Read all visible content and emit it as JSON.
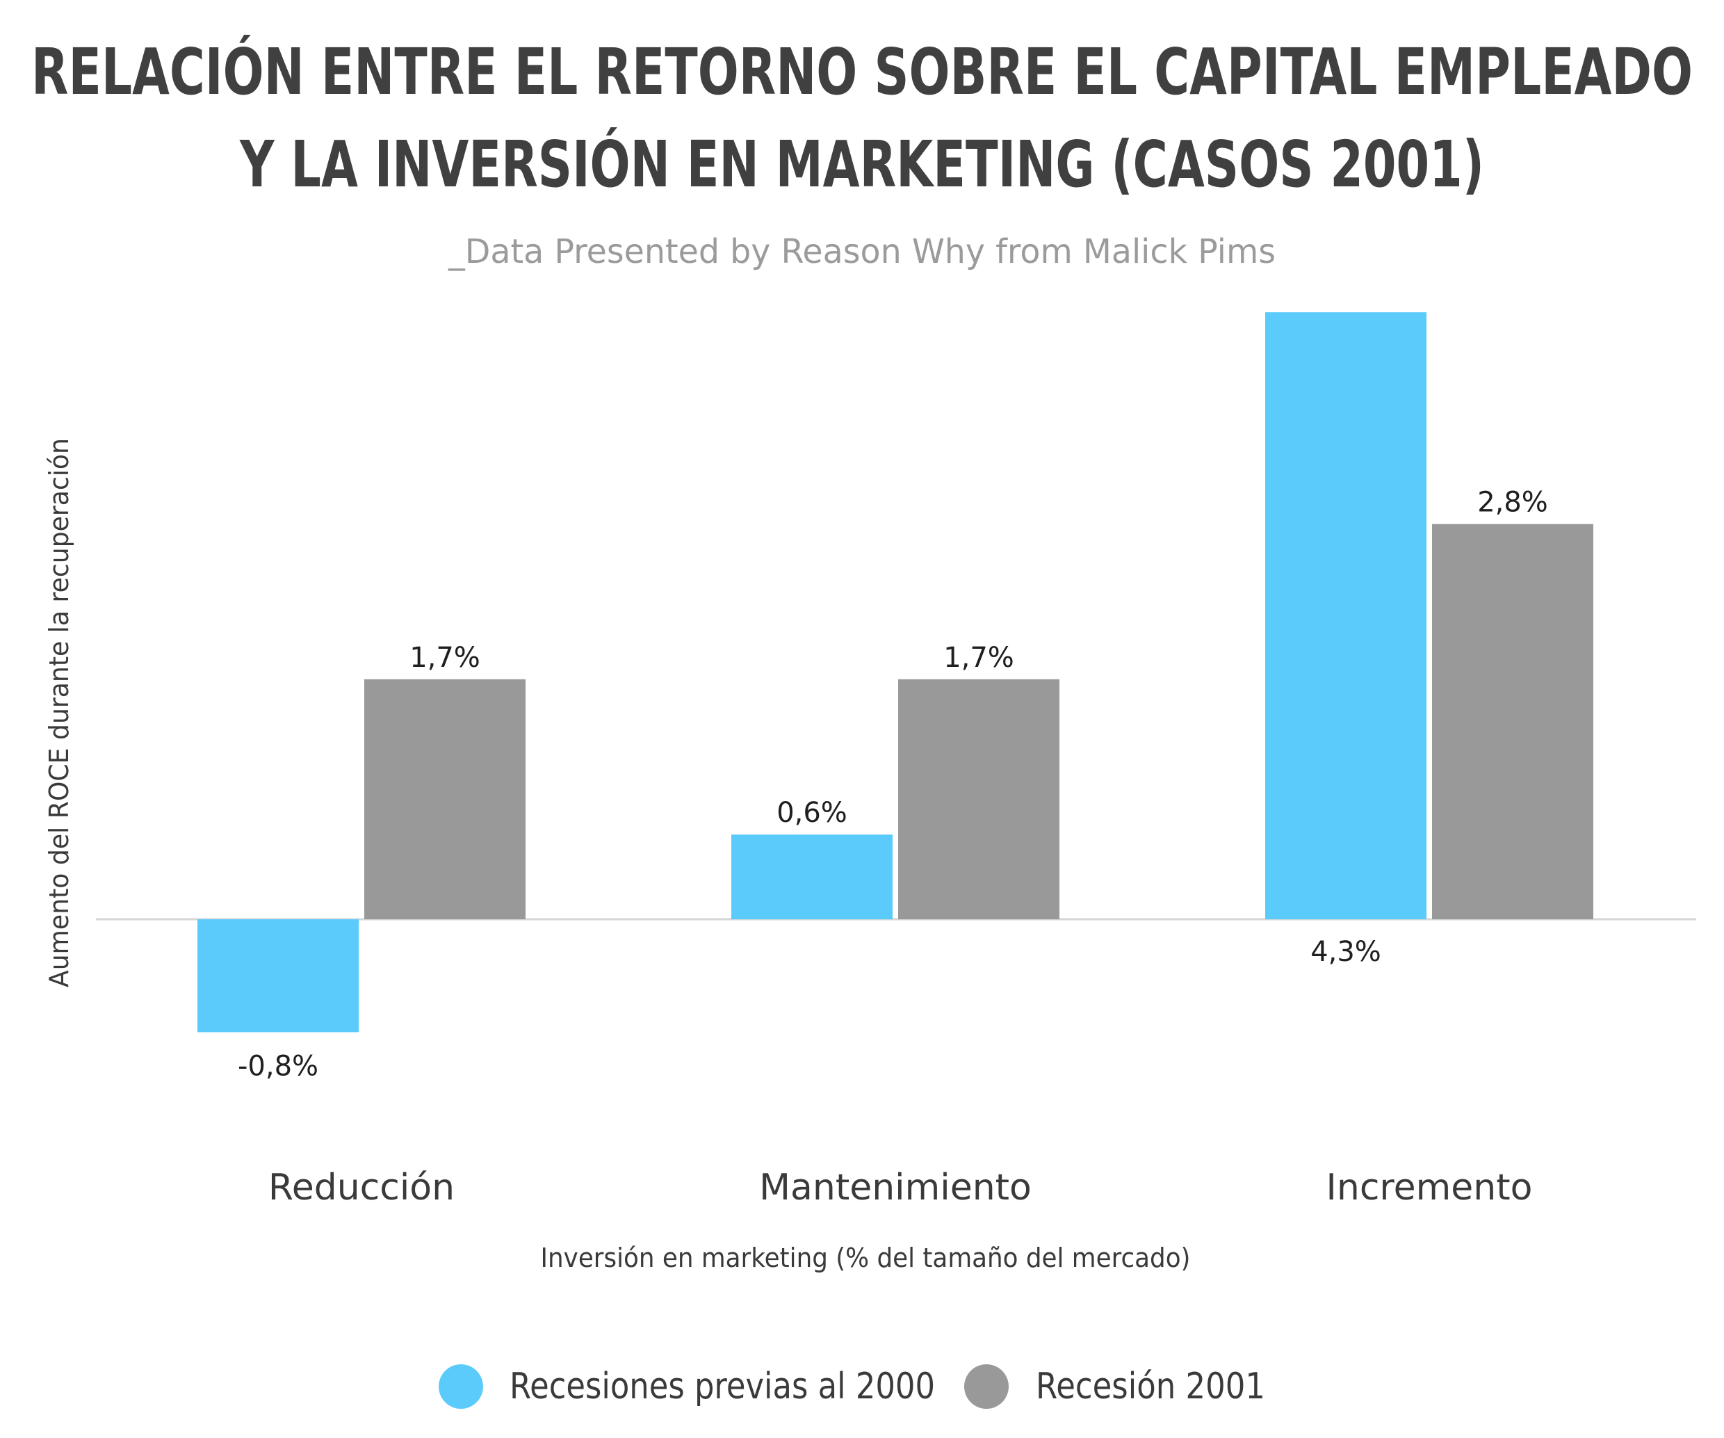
{
  "title_line1": "RELACIÓN ENTRE EL RETORNO SOBRE EL CAPITAL EMPLEADO",
  "title_line2": "Y LA INVERSIÓN EN MARKETING (CASOS 2001)",
  "subtitle": "_Data Presented by Reason Why from Malick Pims",
  "colors": {
    "series1": "#5bcbfc",
    "series2": "#999999",
    "baseline": "#d6d6d6"
  },
  "chart_data": {
    "type": "bar",
    "title": "RELACIÓN ENTRE EL RETORNO SOBRE EL CAPITAL EMPLEADO Y LA INVERSIÓN EN MARKETING (CASOS 2001)",
    "subtitle": "_Data Presented by Reason Why from Malick Pims",
    "xlabel": "Inversión en marketing (% del tamaño del mercado)",
    "ylabel": "Aumento del ROCE durante la recuperación",
    "categories": [
      "Reducción",
      "Mantenimiento",
      "Incremento"
    ],
    "series": [
      {
        "name": "Recesiones previas al 2000",
        "values": [
          -0.8,
          0.6,
          4.3
        ],
        "labels": [
          "-0,8%",
          "0,6%",
          "4,3%"
        ]
      },
      {
        "name": "Recesión 2001",
        "values": [
          1.7,
          1.7,
          2.8
        ],
        "labels": [
          "1,7%",
          "1,7%",
          "2,8%"
        ]
      }
    ],
    "ylim": [
      -1.5,
      4.3
    ],
    "grid": false,
    "legend": "bottom"
  }
}
